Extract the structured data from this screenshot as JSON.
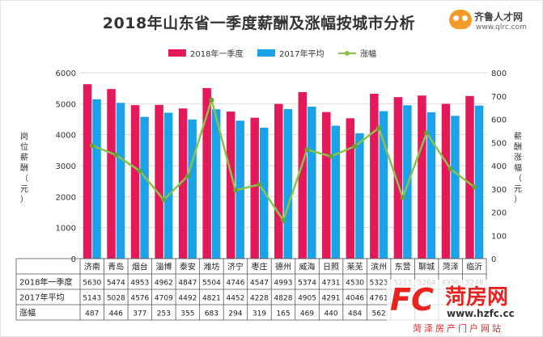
{
  "chart_data": {
    "type": "bar",
    "title": "2018年山东省一季度薪酬及涨幅按城市分析",
    "categories": [
      "济南",
      "青岛",
      "烟台",
      "淄博",
      "泰安",
      "潍坊",
      "济宁",
      "枣庄",
      "德州",
      "威海",
      "日照",
      "莱芜",
      "滨州",
      "东营",
      "聊城",
      "菏泽",
      "临沂"
    ],
    "series": [
      {
        "name": "2018年一季度",
        "color": "#e5195a",
        "values": [
          5630,
          5474,
          4953,
          4962,
          4847,
          5504,
          4746,
          4547,
          4993,
          5374,
          4731,
          4530,
          5323,
          5213,
          5264,
          4996,
          5248
        ]
      },
      {
        "name": "2017年平均",
        "color": "#1aa3e8",
        "values": [
          5143,
          5028,
          4576,
          4709,
          4492,
          4821,
          4452,
          4228,
          4828,
          4905,
          4291,
          4046,
          4761,
          4950,
          4723,
          4610,
          4940
        ]
      },
      {
        "name": "涨幅",
        "color": "#8bc34a",
        "type": "line",
        "axis": "right",
        "values": [
          487,
          446,
          377,
          253,
          355,
          683,
          294,
          319,
          165,
          469,
          440,
          484,
          562,
          263,
          541,
          386,
          308
        ]
      }
    ],
    "ylabel": "岗位薪酬（元）",
    "y2label": "薪酬涨幅（元）",
    "ylim": [
      0,
      6000
    ],
    "y2lim": [
      0,
      800
    ],
    "yticks": [
      0,
      1000,
      2000,
      3000,
      4000,
      5000,
      6000
    ],
    "y2ticks": [
      0,
      100,
      200,
      300,
      400,
      500,
      600,
      700,
      800
    ],
    "legend_position": "top-center",
    "grid": true,
    "table": {
      "row_labels": [
        "2018年一季度",
        "2017年平均",
        "涨幅"
      ],
      "rows": [
        [
          "5630",
          "5474",
          "4953",
          "4962",
          "4847",
          "5504",
          "4746",
          "4547",
          "4993",
          "5374",
          "4731",
          "4530",
          "5323",
          "5213",
          "5264",
          "4996",
          "5248"
        ],
        [
          "5143",
          "5028",
          "4576",
          "4709",
          "4492",
          "4821",
          "4452",
          "4228",
          "4828",
          "4905",
          "4291",
          "4046",
          "4761",
          "",
          "",
          "",
          ""
        ],
        [
          "487",
          "446",
          "377",
          "253",
          "355",
          "683",
          "294",
          "319",
          "165",
          "469",
          "440",
          "484",
          "562",
          "",
          "",
          "",
          ""
        ]
      ]
    }
  },
  "logo": {
    "brand": "齐鲁人才网",
    "url": "www.qlrc.com",
    "icon": "frog-face-icon",
    "color": "#f59a26"
  },
  "watermark": {
    "mark": "FC",
    "name": "菏房网",
    "url": "www.hzfc.cc",
    "slogan": "菏泽房产门户网站",
    "color": "#e8231f"
  }
}
